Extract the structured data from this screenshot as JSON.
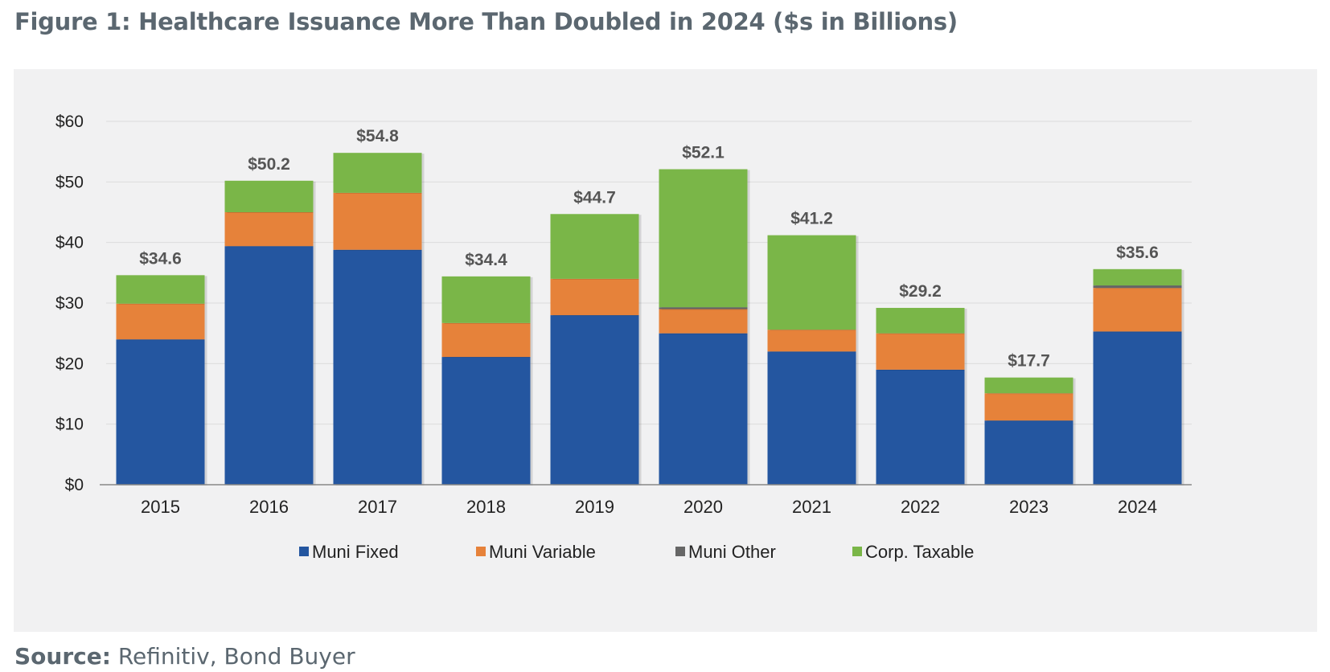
{
  "title": "Figure 1: Healthcare Issuance More Than Doubled in 2024 ($s in Billions)",
  "source": {
    "label": "Source:",
    "text": " Refinitiv, Bond Buyer"
  },
  "chart_data": {
    "type": "bar",
    "stacked": true,
    "title": "Figure 1: Healthcare Issuance More Than Doubled in 2024 ($s in Billions)",
    "categories": [
      "2015",
      "2016",
      "2017",
      "2018",
      "2019",
      "2020",
      "2021",
      "2022",
      "2023",
      "2024"
    ],
    "series": [
      {
        "name": "Muni Fixed",
        "color": "#2456a0",
        "values": [
          24.0,
          39.4,
          38.8,
          21.1,
          28.0,
          25.0,
          22.0,
          19.0,
          10.6,
          25.3
        ]
      },
      {
        "name": "Muni Variable",
        "color": "#e6823a",
        "values": [
          5.9,
          5.6,
          9.4,
          5.6,
          6.0,
          4.0,
          3.6,
          6.0,
          4.5,
          7.2
        ]
      },
      {
        "name": "Muni Other",
        "color": "#666666",
        "values": [
          0.0,
          0.0,
          0.0,
          0.0,
          0.0,
          0.3,
          0.0,
          0.0,
          0.0,
          0.4
        ]
      },
      {
        "name": "Corp. Taxable",
        "color": "#7ab648",
        "values": [
          4.7,
          5.2,
          6.6,
          7.7,
          10.7,
          22.8,
          15.6,
          4.2,
          2.6,
          2.7
        ]
      }
    ],
    "totals": [
      "$34.6",
      "$50.2",
      "$54.8",
      "$34.4",
      "$44.7",
      "$52.1",
      "$41.2",
      "$29.2",
      "$17.7",
      "$35.6"
    ],
    "y_ticks": [
      "$0",
      "$10",
      "$20",
      "$30",
      "$40",
      "$50",
      "$60"
    ],
    "ylim": [
      0,
      60
    ],
    "grid": true,
    "legend_position": "bottom",
    "xlabel": "",
    "ylabel": ""
  }
}
